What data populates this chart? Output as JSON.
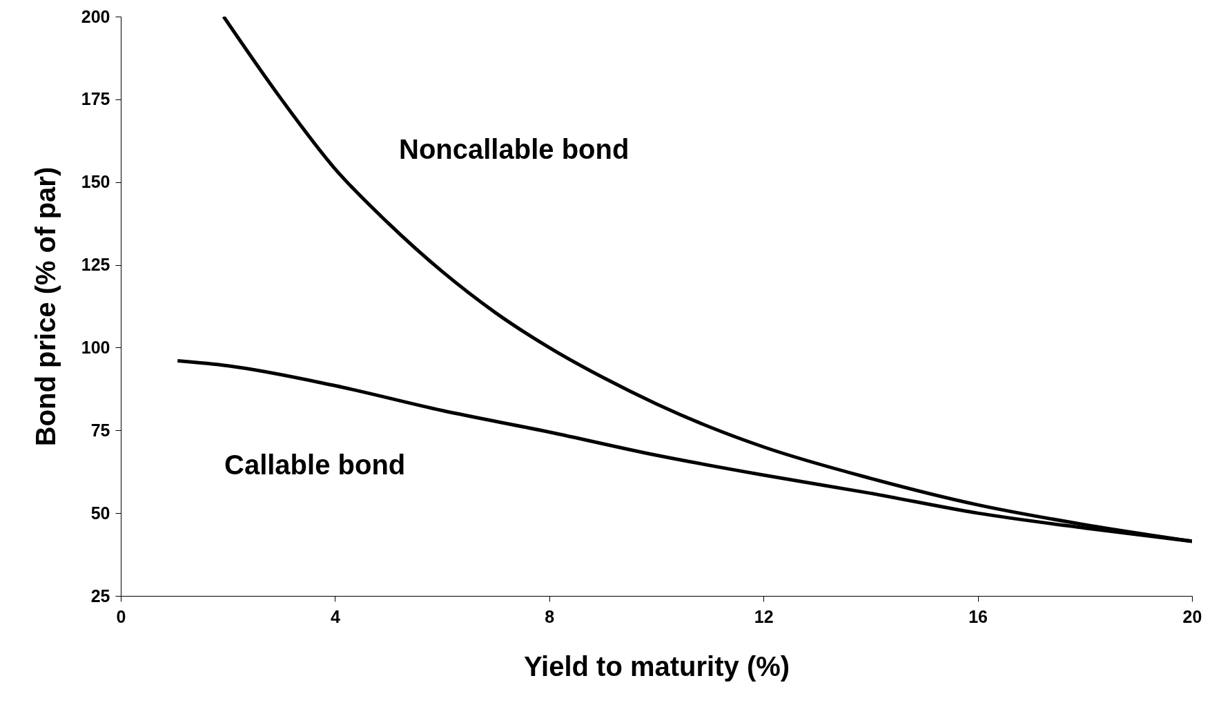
{
  "chart_data": {
    "type": "line",
    "xlabel": "Yield to maturity (%)",
    "ylabel": "Bond price (% of par)",
    "xlim": [
      0,
      20
    ],
    "xticks": [
      0,
      4,
      8,
      12,
      16,
      20
    ],
    "ylim": [
      25,
      200
    ],
    "yticks": [
      25,
      50,
      75,
      100,
      125,
      150,
      175,
      200
    ],
    "grid": false,
    "marker": "none",
    "line_style": "solid",
    "series": [
      {
        "name": "Noncallable bond",
        "color": "#000000",
        "x": [
          1.92,
          3,
          4,
          5,
          6,
          7,
          8,
          9,
          10,
          11,
          12,
          14,
          16,
          18,
          20
        ],
        "values": [
          200,
          175,
          154,
          137.5,
          123,
          110.5,
          100,
          91,
          83,
          76,
          70,
          60.5,
          52.5,
          46.5,
          41.5
        ]
      },
      {
        "name": "Callable bond",
        "color": "#000000",
        "x": [
          1.06,
          2,
          4,
          6,
          8,
          10,
          12,
          14,
          16,
          18,
          20
        ],
        "values": [
          96,
          94.5,
          88.5,
          81,
          74.5,
          67.5,
          61.5,
          56,
          50,
          45.5,
          41.5
        ]
      }
    ]
  }
}
